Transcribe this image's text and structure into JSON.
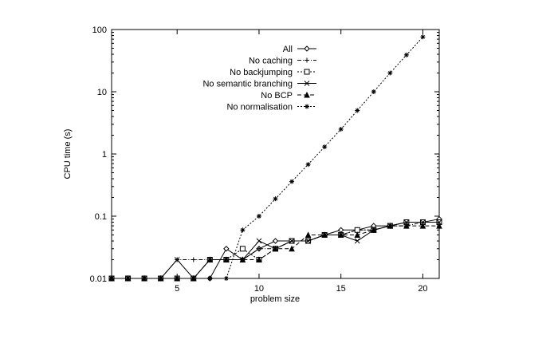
{
  "chart_data": {
    "type": "line",
    "title": "",
    "xlabel": "problem size",
    "ylabel": "CPU time (s)",
    "xlim": [
      1,
      21
    ],
    "ylim": [
      0.01,
      100
    ],
    "yscale": "log",
    "x_ticks": [
      5,
      10,
      15,
      20
    ],
    "y_ticks": [
      0.01,
      0.1,
      1,
      10,
      100
    ],
    "y_tick_labels": [
      "0.01",
      "0.1",
      "1",
      "10",
      "100"
    ],
    "grid": false,
    "legend_position": "top-left-inside",
    "x": [
      1,
      2,
      3,
      4,
      5,
      6,
      7,
      8,
      9,
      10,
      11,
      12,
      13,
      14,
      15,
      16,
      17,
      18,
      19,
      20,
      21
    ],
    "series": [
      {
        "name": "All",
        "marker": "diamond",
        "dash": "solid",
        "values": [
          0.01,
          0.01,
          0.01,
          0.01,
          0.01,
          0.01,
          0.01,
          0.03,
          0.02,
          0.03,
          0.04,
          0.04,
          0.04,
          0.05,
          0.06,
          0.06,
          0.07,
          0.07,
          0.08,
          0.08,
          0.09
        ]
      },
      {
        "name": "No caching",
        "marker": "plus",
        "dash": "dashdot",
        "values": [
          0.01,
          0.01,
          0.01,
          0.01,
          0.02,
          0.02,
          0.02,
          0.02,
          0.02,
          0.03,
          0.03,
          0.04,
          0.04,
          0.05,
          0.05,
          0.06,
          0.06,
          0.07,
          0.07,
          0.08,
          0.08
        ]
      },
      {
        "name": "No backjumping",
        "marker": "square",
        "dash": "dotted",
        "values": [
          0.01,
          0.01,
          0.01,
          0.01,
          0.01,
          0.01,
          0.02,
          0.02,
          0.03,
          0.02,
          0.03,
          0.04,
          0.04,
          0.05,
          0.05,
          0.06,
          0.06,
          0.07,
          0.08,
          0.08,
          0.08
        ]
      },
      {
        "name": "No semantic branching",
        "marker": "cross",
        "dash": "solid",
        "values": [
          0.01,
          0.01,
          0.01,
          0.01,
          0.02,
          0.01,
          0.02,
          0.02,
          0.02,
          0.04,
          0.03,
          0.04,
          0.04,
          0.05,
          0.05,
          0.04,
          0.06,
          0.07,
          0.08,
          0.08,
          0.08
        ]
      },
      {
        "name": "No BCP",
        "marker": "triangle",
        "dash": "dashed",
        "values": [
          0.01,
          0.01,
          0.01,
          0.01,
          0.01,
          0.01,
          0.02,
          0.02,
          0.02,
          0.02,
          0.03,
          0.03,
          0.05,
          0.05,
          0.05,
          0.05,
          0.06,
          0.07,
          0.07,
          0.07,
          0.07
        ]
      },
      {
        "name": "No normalisation",
        "marker": "star",
        "dash": "dotted",
        "values": [
          0.01,
          0.01,
          0.01,
          0.01,
          0.01,
          0.01,
          0.01,
          0.01,
          0.06,
          0.1,
          0.19,
          0.36,
          0.68,
          1.3,
          2.5,
          5,
          10,
          20,
          39,
          76,
          null
        ]
      }
    ]
  }
}
